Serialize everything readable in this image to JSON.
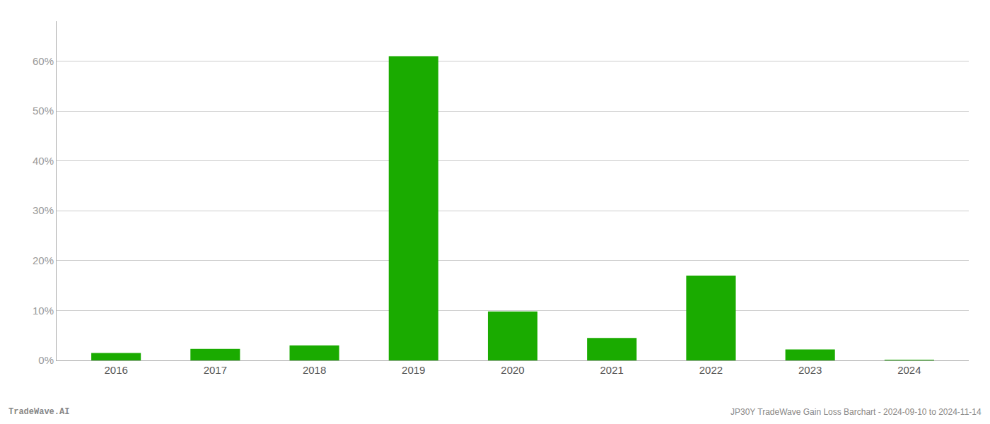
{
  "chart_data": {
    "type": "bar",
    "categories": [
      "2016",
      "2017",
      "2018",
      "2019",
      "2020",
      "2021",
      "2022",
      "2023",
      "2024"
    ],
    "values": [
      1.5,
      2.3,
      3.0,
      61.0,
      9.8,
      4.5,
      17.0,
      2.2,
      0.05
    ],
    "color": "#1aab00",
    "ylim": [
      0,
      68
    ],
    "yticks": [
      {
        "value": 0,
        "label": "0%"
      },
      {
        "value": 10,
        "label": "10%"
      },
      {
        "value": 20,
        "label": "20%"
      },
      {
        "value": 30,
        "label": "30%"
      },
      {
        "value": 40,
        "label": "40%"
      },
      {
        "value": 50,
        "label": "50%"
      },
      {
        "value": 60,
        "label": "60%"
      }
    ],
    "grid": true,
    "annotations": [
      "TradeWave.AI",
      "JP30Y TradeWave Gain Loss Barchart - 2024-09-10 to 2024-11-14"
    ]
  }
}
